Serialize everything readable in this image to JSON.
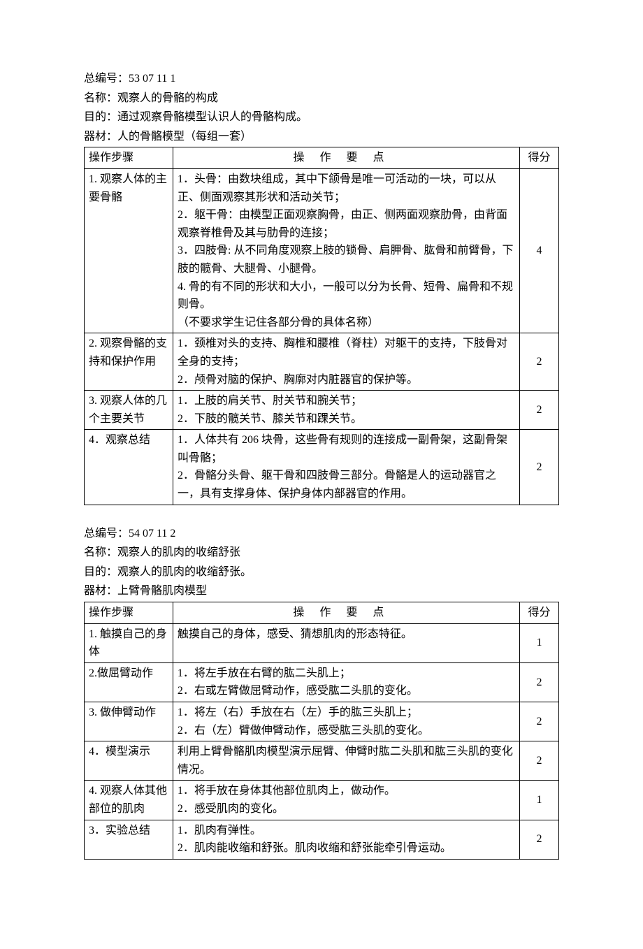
{
  "section1": {
    "serial_label": "总编号：",
    "serial_value": "53 07 11  1",
    "name_label": "名称：",
    "name_value": "观察人的骨骼的构成",
    "purpose_label": "目的：",
    "purpose_value": "通过观察骨骼模型认识人的骨骼构成。",
    "materials_label": "器材：",
    "materials_value": "人的骨骼模型（每组一套）",
    "table": {
      "headers": {
        "steps": "操作步骤",
        "points": "操作要点",
        "score": "得分"
      },
      "rows": [
        {
          "step": "1. 观察人体的主要骨骼",
          "points": "1．头骨：由数块组成，其中下颌骨是唯一可活动的一块，可以从正、侧面观察其形状和活动关节；\n2．躯干骨：由模型正面观察胸骨，由正、侧两面观察肋骨，由背面观察脊椎骨及其与肋骨的连接；\n3．四肢骨: 从不同角度观察上肢的锁骨、肩胛骨、肱骨和前臂骨，下肢的髋骨、大腿骨、小腿骨。\n4. 骨的有不同的形状和大小，一般可以分为长骨、短骨、扁骨和不规则骨。\n（不要求学生记住各部分骨的具体名称）",
          "score": "4"
        },
        {
          "step": "2. 观察骨骼的支持和保护作用",
          "points": "1．颈椎对头的支持、胸椎和腰椎（脊柱）对躯干的支持，下肢骨对全身的支持；\n2．颅骨对脑的保护、胸廓对内脏器官的保护等。",
          "score": "2"
        },
        {
          "step": "3. 观察人体的几个主要关节",
          "points": "1．上肢的肩关节、肘关节和腕关节；\n2．下肢的髋关节、膝关节和踝关节。",
          "score": "2"
        },
        {
          "step": "4．观察总结",
          "points": "1．人体共有 206 块骨，这些骨有规则的连接成一副骨架，这副骨架叫骨骼；\n2．骨骼分头骨、躯干骨和四肢骨三部分。骨骼是人的运动器官之一，具有支撑身体、保护身体内部器官的作用。",
          "score": "2"
        }
      ]
    }
  },
  "section2": {
    "serial_label": "总编号：",
    "serial_value": "54 07 11  2",
    "name_label": "名称：",
    "name_value": "观察人的肌肉的收缩舒张",
    "purpose_label": "目的：",
    "purpose_value": "观察人的肌肉的收缩舒张。",
    "materials_label": "器材：",
    "materials_value": "上臂骨骼肌肉模型",
    "table": {
      "headers": {
        "steps": "操作步骤",
        "points": "操作要点",
        "score": "得分"
      },
      "rows": [
        {
          "step": "1. 触摸自己的身体",
          "points": "触摸自己的身体，感受、猜想肌肉的形态特征。",
          "score": "1"
        },
        {
          "step": "2.做屈臂动作",
          "points": "1．将左手放在右臂的肱二头肌上；\n2．右或左臂做屈臂动作，感受肱二头肌的变化。",
          "score": "2"
        },
        {
          "step": "3. 做伸臂动作",
          "points": "1．将左（右）手放在右（左）手的肱三头肌上；\n2．右（左）臂做伸臂动作，感受肱三头肌的变化。",
          "score": "2"
        },
        {
          "step": "4．模型演示",
          "points": "利用上臂骨骼肌肉模型演示屈臂、伸臂时肱二头肌和肱三头肌的变化情况。",
          "score": "2"
        },
        {
          "step": "4. 观察人体其他部位的肌肉",
          "points": "1．将手放在身体其他部位肌肉上，做动作。\n2．感受肌肉的变化。",
          "score": "1"
        },
        {
          "step": "3．实验总结",
          "points": "1．肌肉有弹性。\n2．肌肉能收缩和舒张。肌肉收缩和舒张能牵引骨运动。",
          "score": "2"
        }
      ]
    }
  }
}
